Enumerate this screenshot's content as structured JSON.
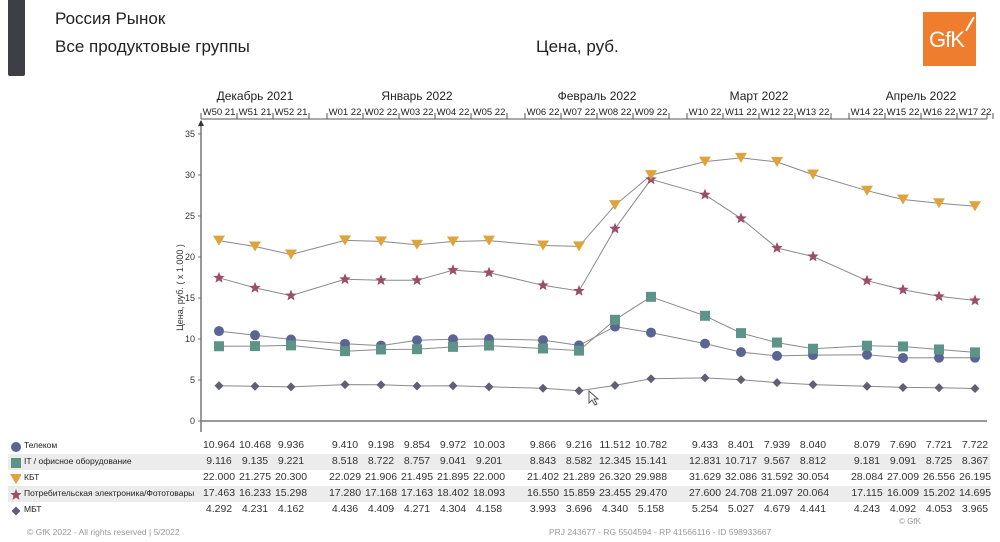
{
  "header": {
    "title": "Россия Рынок",
    "subtitle": "Все продуктовые группы",
    "measure": "Цена, руб.",
    "logo_text": "GfK",
    "brand_color": "#ef7d2e"
  },
  "footer": {
    "copyright": "© GfK 2022 - All rights reserved | 5/2022",
    "project": "PRJ 243677 - RG 5504594 - RP 41566116 - ID 598933667",
    "source": "© GfK"
  },
  "chart_data": {
    "type": "line",
    "title": "Цена, руб.",
    "ylabel": "Цена, руб. ( x 1.000 )",
    "xlabel": "",
    "ylim": [
      0,
      35
    ],
    "yticks": [
      0,
      5,
      10,
      15,
      20,
      25,
      30,
      35
    ],
    "grid": false,
    "legend_placement": "bottom-table",
    "months": [
      {
        "label": "Декабрь 2021",
        "weeks": 3
      },
      {
        "label": "Январь 2022",
        "weeks": 5
      },
      {
        "label": "Февраль 2022",
        "weeks": 4
      },
      {
        "label": "Март 2022",
        "weeks": 4
      },
      {
        "label": "Апрель 2022",
        "weeks": 4
      }
    ],
    "categories": [
      "W50 21",
      "W51 21",
      "W52 21",
      "W01 22",
      "W02 22",
      "W03 22",
      "W04 22",
      "W05 22",
      "W06 22",
      "W07 22",
      "W08 22",
      "W09 22",
      "W10 22",
      "W11 22",
      "W12 22",
      "W13 22",
      "W14 22",
      "W15 22",
      "W16 22",
      "W17 22"
    ],
    "series": [
      {
        "name": "Телеком",
        "marker": "circle",
        "color": "#5a6596",
        "values": [
          10.964,
          10.468,
          9.936,
          9.41,
          9.198,
          9.854,
          9.972,
          10.003,
          9.866,
          9.216,
          11.512,
          10.782,
          9.433,
          8.401,
          7.939,
          8.04,
          8.079,
          7.69,
          7.721,
          7.722
        ],
        "labels": [
          "10.964",
          "10.468",
          "9.936",
          "9.410",
          "9.198",
          "9.854",
          "9.972",
          "10.003",
          "9.866",
          "9.216",
          "11.512",
          "10.782",
          "9.433",
          "8.401",
          "7.939",
          "8.040",
          "8.079",
          "7.690",
          "7.721",
          "7.722"
        ]
      },
      {
        "name": "IT / офисное оборудование",
        "marker": "square",
        "color": "#5e9488",
        "values": [
          9.116,
          9.135,
          9.221,
          8.518,
          8.722,
          8.757,
          9.041,
          9.201,
          8.843,
          8.582,
          12.345,
          15.141,
          12.831,
          10.717,
          9.567,
          8.812,
          9.181,
          9.091,
          8.725,
          8.367
        ],
        "labels": [
          "9.116",
          "9.135",
          "9.221",
          "8.518",
          "8.722",
          "8.757",
          "9.041",
          "9.201",
          "8.843",
          "8.582",
          "12.345",
          "15.141",
          "12.831",
          "10.717",
          "9.567",
          "8.812",
          "9.181",
          "9.091",
          "8.725",
          "8.367"
        ]
      },
      {
        "name": "КБТ",
        "marker": "triangle-down",
        "color": "#e0a33c",
        "values": [
          22.0,
          21.275,
          20.3,
          22.029,
          21.906,
          21.495,
          21.895,
          22.0,
          21.402,
          21.289,
          26.32,
          29.988,
          31.629,
          32.086,
          31.592,
          30.054,
          28.084,
          27.009,
          26.556,
          26.195
        ],
        "labels": [
          "22.000",
          "21.275",
          "20.300",
          "22.029",
          "21.906",
          "21.495",
          "21.895",
          "22.000",
          "21.402",
          "21.289",
          "26.320",
          "29.988",
          "31.629",
          "32.086",
          "31.592",
          "30.054",
          "28.084",
          "27.009",
          "26.556",
          "26.195"
        ]
      },
      {
        "name": "Потребительская электроника/Фототовары",
        "marker": "star",
        "color": "#9b4d6a",
        "values": [
          17.463,
          16.233,
          15.298,
          17.28,
          17.168,
          17.163,
          18.402,
          18.093,
          16.55,
          15.859,
          23.455,
          29.47,
          27.6,
          24.708,
          21.097,
          20.064,
          17.115,
          16.009,
          15.202,
          14.695
        ],
        "labels": [
          "17.463",
          "16.233",
          "15.298",
          "17.280",
          "17.168",
          "17.163",
          "18.402",
          "18.093",
          "16.550",
          "15.859",
          "23.455",
          "29.470",
          "27.600",
          "24.708",
          "21.097",
          "20.064",
          "17.115",
          "16.009",
          "15.202",
          "14.695"
        ]
      },
      {
        "name": "МБТ",
        "marker": "diamond",
        "color": "#5f5f75",
        "values": [
          4.292,
          4.231,
          4.162,
          4.436,
          4.409,
          4.271,
          4.304,
          4.158,
          3.993,
          3.696,
          4.34,
          5.158,
          5.254,
          5.027,
          4.679,
          4.441,
          4.243,
          4.092,
          4.053,
          3.965
        ],
        "labels": [
          "4.292",
          "4.231",
          "4.162",
          "4.436",
          "4.409",
          "4.271",
          "4.304",
          "4.158",
          "3.993",
          "3.696",
          "4.340",
          "5.158",
          "5.254",
          "5.027",
          "4.679",
          "4.441",
          "4.243",
          "4.092",
          "4.053",
          "3.965"
        ]
      }
    ]
  }
}
